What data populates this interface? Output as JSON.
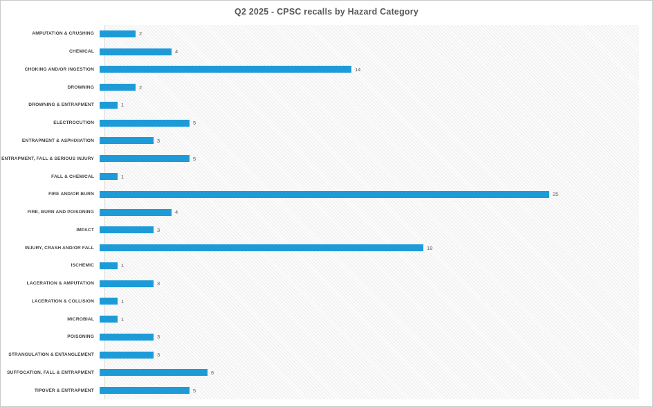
{
  "title": "Q2 2025 - CPSC recalls by Hazard Category",
  "colors": {
    "bar": "#1d9bd8",
    "title_text": "#595959",
    "category_text": "#3f3f3f",
    "value_text": "#595959",
    "axis_line": "#d9d9d9",
    "plot_hatch": "#ececec",
    "frame_border": "#c9c9c9"
  },
  "chart_data": {
    "type": "bar",
    "orientation": "horizontal",
    "title": "Q2 2025 - CPSC recalls by Hazard Category",
    "xlabel": "",
    "ylabel": "",
    "legend": "none",
    "gridlines": false,
    "value_labels_shown": true,
    "xlim": [
      0,
      26
    ],
    "bar_color": "#1d9bd8",
    "categories": [
      "AMPUTATION & CRUSHING",
      "CHEMICAL",
      "CHOKING AND/OR INGESTION",
      "DROWNING",
      "DROWNING & ENTRAPMENT",
      "ELECTROCUTION",
      "ENTRAPMENT & ASPHIXIATION",
      "ENTRAPMENT, FALL & SERIOUS INJURY",
      "FALL & CHEMICAL",
      "FIRE AND/OR BURN",
      "FIRE, BURN AND POISONING",
      "IMPACT",
      "INJURY, CRASH AND/OR FALL",
      "ISCHEMIC",
      "LACERATION & AMPUTATION",
      "LACERATION & COLLISION",
      "MICROBIAL",
      "POISONING",
      "STRANGULATION & ENTANGLEMENT",
      "SUFFOCATION, FALL & ENTRAPMENT",
      "TIPOVER & ENTRAPMENT"
    ],
    "values": [
      2,
      4,
      14,
      2,
      1,
      5,
      3,
      5,
      1,
      25,
      4,
      3,
      18,
      1,
      3,
      1,
      1,
      3,
      3,
      6,
      5
    ]
  }
}
